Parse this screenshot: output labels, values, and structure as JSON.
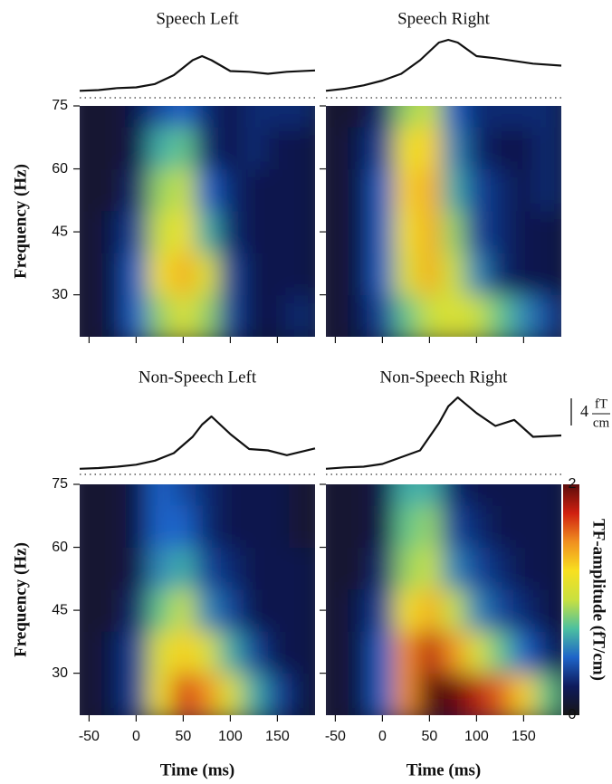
{
  "chart_data": [
    {
      "type": "heatmap",
      "title": "Speech Left",
      "ylabel": "Frequency (Hz)",
      "xlim": [
        -60,
        190
      ],
      "ylim": [
        20,
        75
      ],
      "xticks": [
        -50,
        0,
        50,
        100,
        150
      ],
      "yticks": [
        30,
        45,
        60,
        75
      ],
      "xtick_labels": false,
      "ytick_labels": true,
      "zlim": [
        0,
        2
      ],
      "wave": {
        "x": [
          -60,
          -40,
          -20,
          0,
          20,
          40,
          60,
          70,
          80,
          100,
          120,
          140,
          160,
          190
        ],
        "values": [
          0.5,
          0.6,
          0.9,
          1.0,
          1.5,
          2.8,
          5.0,
          5.6,
          5.0,
          3.4,
          3.3,
          3.0,
          3.3,
          3.5
        ]
      },
      "heatmap": {
        "x": [
          -50,
          -25,
          0,
          25,
          50,
          75,
          100,
          125,
          150,
          175
        ],
        "y": [
          25,
          35,
          45,
          55,
          65,
          75
        ],
        "z": [
          [
            0.1,
            0.2,
            0.5,
            0.9,
            1.1,
            0.9,
            0.4,
            0.2,
            0.2,
            0.3
          ],
          [
            0.1,
            0.2,
            0.5,
            1.2,
            1.4,
            1.1,
            0.4,
            0.2,
            0.2,
            0.2
          ],
          [
            0.1,
            0.2,
            0.4,
            1.0,
            1.2,
            0.7,
            0.3,
            0.2,
            0.2,
            0.2
          ],
          [
            0.1,
            0.1,
            0.3,
            0.9,
            1.0,
            0.5,
            0.3,
            0.2,
            0.2,
            0.2
          ],
          [
            0.1,
            0.1,
            0.2,
            0.7,
            0.8,
            0.3,
            0.2,
            0.3,
            0.2,
            0.2
          ],
          [
            0.1,
            0.1,
            0.2,
            0.4,
            0.5,
            0.3,
            0.2,
            0.3,
            0.3,
            0.3
          ]
        ]
      }
    },
    {
      "type": "heatmap",
      "title": "Speech Right",
      "xlim": [
        -60,
        190
      ],
      "ylim": [
        20,
        75
      ],
      "xticks": [
        -50,
        0,
        50,
        100,
        150
      ],
      "yticks": [
        30,
        45,
        60,
        75
      ],
      "xtick_labels": false,
      "ytick_labels": false,
      "zlim": [
        0,
        2
      ],
      "wave": {
        "x": [
          -60,
          -40,
          -20,
          0,
          20,
          40,
          60,
          70,
          80,
          100,
          120,
          140,
          160,
          190
        ],
        "values": [
          0.5,
          0.8,
          1.3,
          2.0,
          3.0,
          5.0,
          7.6,
          8.0,
          7.6,
          5.6,
          5.3,
          4.9,
          4.5,
          4.2
        ]
      },
      "heatmap": {
        "x": [
          -50,
          -25,
          0,
          25,
          50,
          75,
          100,
          125,
          150,
          175
        ],
        "y": [
          25,
          35,
          45,
          55,
          65,
          75
        ],
        "z": [
          [
            0.1,
            0.2,
            0.4,
            0.8,
            1.0,
            1.1,
            1.0,
            0.8,
            0.6,
            0.4
          ],
          [
            0.1,
            0.2,
            0.5,
            1.1,
            1.4,
            1.0,
            0.6,
            0.3,
            0.2,
            0.2
          ],
          [
            0.1,
            0.2,
            0.5,
            1.2,
            1.4,
            0.9,
            0.4,
            0.3,
            0.2,
            0.2
          ],
          [
            0.1,
            0.2,
            0.5,
            1.3,
            1.4,
            0.7,
            0.4,
            0.3,
            0.2,
            0.3
          ],
          [
            0.1,
            0.2,
            0.4,
            1.2,
            1.3,
            0.6,
            0.3,
            0.2,
            0.2,
            0.3
          ],
          [
            0.1,
            0.1,
            0.3,
            0.9,
            1.0,
            0.5,
            0.3,
            0.3,
            0.3,
            0.3
          ]
        ]
      }
    },
    {
      "type": "heatmap",
      "title": "Non-Speech Left",
      "ylabel": "Frequency (Hz)",
      "xlabel": "Time (ms)",
      "xlim": [
        -60,
        190
      ],
      "ylim": [
        20,
        75
      ],
      "xticks": [
        -50,
        0,
        50,
        100,
        150
      ],
      "yticks": [
        30,
        45,
        60,
        75
      ],
      "xtick_labels": true,
      "ytick_labels": true,
      "zlim": [
        0,
        2
      ],
      "wave": {
        "x": [
          -60,
          -40,
          -20,
          0,
          20,
          40,
          60,
          70,
          80,
          100,
          120,
          140,
          160,
          190
        ],
        "values": [
          0.3,
          0.4,
          0.6,
          0.9,
          1.5,
          2.6,
          5.0,
          6.8,
          8.0,
          5.4,
          3.2,
          3.0,
          2.3,
          3.3
        ]
      },
      "heatmap": {
        "x": [
          -50,
          -25,
          0,
          25,
          50,
          75,
          100,
          125,
          150,
          175
        ],
        "y": [
          25,
          35,
          45,
          55,
          65,
          75
        ],
        "z": [
          [
            0.1,
            0.2,
            0.4,
            1.2,
            1.7,
            1.5,
            1.1,
            0.7,
            0.4,
            0.2
          ],
          [
            0.1,
            0.2,
            0.4,
            1.1,
            1.3,
            1.1,
            0.7,
            0.4,
            0.2,
            0.2
          ],
          [
            0.1,
            0.1,
            0.3,
            0.8,
            1.0,
            0.6,
            0.4,
            0.2,
            0.2,
            0.2
          ],
          [
            0.1,
            0.1,
            0.2,
            0.6,
            0.7,
            0.4,
            0.3,
            0.2,
            0.2,
            0.2
          ],
          [
            0.1,
            0.1,
            0.2,
            0.5,
            0.5,
            0.3,
            0.2,
            0.2,
            0.2,
            0.1
          ],
          [
            0.1,
            0.1,
            0.2,
            0.5,
            0.4,
            0.3,
            0.2,
            0.2,
            0.2,
            0.1
          ]
        ]
      }
    },
    {
      "type": "heatmap",
      "title": "Non-Speech Right",
      "xlabel": "Time (ms)",
      "xlim": [
        -60,
        190
      ],
      "ylim": [
        20,
        75
      ],
      "xticks": [
        -50,
        0,
        50,
        100,
        150
      ],
      "yticks": [
        30,
        45,
        60,
        75
      ],
      "xtick_labels": true,
      "ytick_labels": false,
      "zlim": [
        0,
        2
      ],
      "wave": {
        "x": [
          -60,
          -40,
          -20,
          0,
          20,
          40,
          60,
          70,
          80,
          100,
          120,
          140,
          160,
          190
        ],
        "values": [
          0.3,
          0.5,
          0.6,
          1.0,
          2.0,
          3.0,
          7.0,
          9.5,
          10.8,
          8.5,
          6.6,
          7.5,
          5.0,
          5.2
        ]
      },
      "heatmap": {
        "x": [
          -50,
          -25,
          0,
          25,
          50,
          75,
          100,
          125,
          150,
          175
        ],
        "y": [
          25,
          35,
          45,
          55,
          65,
          75
        ],
        "z": [
          [
            0.1,
            0.2,
            0.5,
            1.5,
            2.0,
            2.0,
            1.8,
            1.6,
            1.3,
            0.8
          ],
          [
            0.1,
            0.2,
            0.5,
            1.5,
            1.8,
            1.5,
            1.1,
            0.8,
            0.5,
            0.3
          ],
          [
            0.1,
            0.2,
            0.4,
            1.2,
            1.4,
            1.0,
            0.6,
            0.4,
            0.3,
            0.2
          ],
          [
            0.1,
            0.1,
            0.3,
            0.9,
            1.0,
            0.6,
            0.4,
            0.3,
            0.2,
            0.2
          ],
          [
            0.1,
            0.1,
            0.2,
            0.8,
            0.9,
            0.4,
            0.3,
            0.2,
            0.2,
            0.2
          ],
          [
            0.1,
            0.1,
            0.2,
            0.7,
            0.7,
            0.3,
            0.2,
            0.2,
            0.2,
            0.2
          ]
        ]
      },
      "colorbar": {
        "label": "TF-amplitude (fT/cm)",
        "ticks": [
          0,
          2
        ],
        "colors": [
          "#161616",
          "#0e1a5c",
          "#1e64c8",
          "#4cc0a0",
          "#c8e040",
          "#f8e020",
          "#f09020",
          "#d02010",
          "#5a0c0c"
        ]
      },
      "scale_bar": {
        "value": 4,
        "unit_top": "fT",
        "unit_bottom": "cm"
      }
    }
  ]
}
